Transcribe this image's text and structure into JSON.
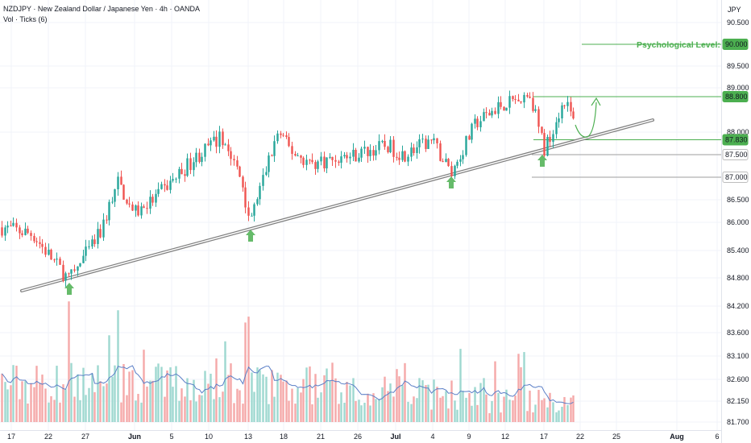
{
  "header": {
    "title": "NZDJPY · New Zealand Dollar / Japanese Yen · 4h · OANDA",
    "volume_label": "Vol · Ticks (6)"
  },
  "chart_data": {
    "type": "candlestick",
    "symbol": "NZDJPY",
    "currency": "JPY",
    "ylim": [
      81.65,
      91.1
    ],
    "price_ticks": [
      "90.500",
      "89.500",
      "89.000",
      "88.000",
      "86.500",
      "86.000",
      "85.400",
      "84.800",
      "84.200",
      "83.600",
      "83.100",
      "82.600",
      "82.150",
      "81.700"
    ],
    "x_ticks": [
      "17",
      "22",
      "27",
      "Jun",
      "5",
      "10",
      "13",
      "18",
      "21",
      "26",
      "Jul",
      "4",
      "9",
      "12",
      "17",
      "22",
      "25",
      "Aug",
      "6"
    ],
    "close_path": [
      {
        "t": "17",
        "price": 85.9
      },
      {
        "t": "20",
        "price": 85.75
      },
      {
        "t": "24",
        "price": 84.75
      },
      {
        "t": "27",
        "price": 85.8
      },
      {
        "t": "29",
        "price": 86.9
      },
      {
        "t": "Jun",
        "price": 86.2
      },
      {
        "t": "2",
        "price": 86.5
      },
      {
        "t": "7",
        "price": 87.4
      },
      {
        "t": "10",
        "price": 87.9
      },
      {
        "t": "12",
        "price": 86.9
      },
      {
        "t": "13",
        "price": 86.0
      },
      {
        "t": "14",
        "price": 87.2
      },
      {
        "t": "18",
        "price": 88.0
      },
      {
        "t": "19",
        "price": 87.6
      },
      {
        "t": "21",
        "price": 87.3
      },
      {
        "t": "26",
        "price": 87.5
      },
      {
        "t": "28",
        "price": 87.7
      },
      {
        "t": "Jul",
        "price": 87.5
      },
      {
        "t": "4",
        "price": 87.8
      },
      {
        "t": "6",
        "price": 87.1
      },
      {
        "t": "10",
        "price": 88.2
      },
      {
        "t": "13",
        "price": 88.6
      },
      {
        "t": "14",
        "price": 88.85
      },
      {
        "t": "17",
        "price": 87.6
      },
      {
        "t": "19",
        "price": 88.75
      },
      {
        "t": "20",
        "price": 88.2
      }
    ],
    "series": [
      {
        "name": "Vol · Ticks (6)",
        "type": "volume"
      }
    ],
    "levels": [
      {
        "price": 90.0,
        "label": "90.000",
        "annotation": "Psychological Level: 90",
        "color": "#4caf50"
      },
      {
        "price": 88.8,
        "label": "88.800",
        "color": "#4caf50"
      },
      {
        "price": 87.83,
        "label": "87.830",
        "color": "#4caf50"
      },
      {
        "price": 87.5,
        "label": "87.500",
        "color": "#9e9e9e"
      },
      {
        "price": 87.0,
        "label": "87.000",
        "color": "#9e9e9e"
      }
    ],
    "trendline": {
      "from": {
        "t": "20",
        "price": 84.55
      },
      "to": {
        "t": "29",
        "price": 88.3
      }
    },
    "support_arrows": [
      "24",
      "13",
      "6",
      "17"
    ],
    "colors": {
      "up": "#26a69a",
      "down": "#ef5350",
      "up_volume": "#9ed8d0",
      "down_volume": "#f5a9a9",
      "level": "#4caf50",
      "trendline": "#808080"
    }
  }
}
